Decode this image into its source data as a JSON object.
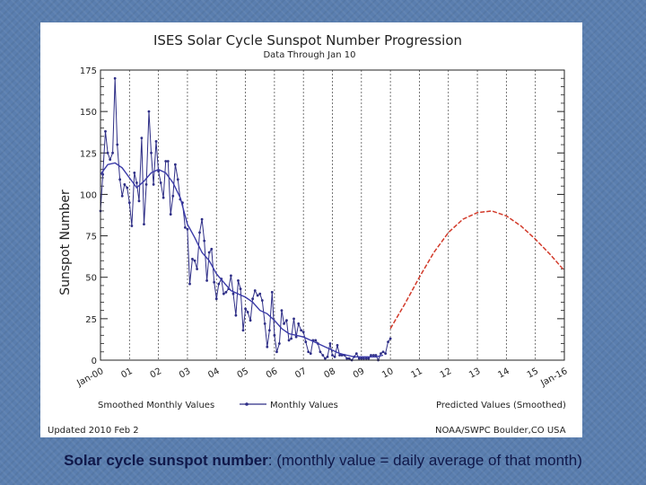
{
  "chart_data": {
    "type": "line",
    "title": "ISES Solar Cycle Sunspot Number Progression",
    "subtitle": "Data Through Jan 10",
    "ylabel": "Sunspot Number",
    "ylim": [
      0,
      175
    ],
    "yticks": [
      0,
      25,
      50,
      75,
      100,
      125,
      150,
      175
    ],
    "xlim": [
      2000.0,
      2016.0
    ],
    "xtick_labels": [
      {
        "x": 2000,
        "label": "Jan-00"
      },
      {
        "x": 2001,
        "label": "01"
      },
      {
        "x": 2002,
        "label": "02"
      },
      {
        "x": 2003,
        "label": "03"
      },
      {
        "x": 2004,
        "label": "04"
      },
      {
        "x": 2005,
        "label": "05"
      },
      {
        "x": 2006,
        "label": "06"
      },
      {
        "x": 2007,
        "label": "07"
      },
      {
        "x": 2008,
        "label": "08"
      },
      {
        "x": 2009,
        "label": "09"
      },
      {
        "x": 2010,
        "label": "10"
      },
      {
        "x": 2011,
        "label": "11"
      },
      {
        "x": 2012,
        "label": "12"
      },
      {
        "x": 2013,
        "label": "13"
      },
      {
        "x": 2014,
        "label": "14"
      },
      {
        "x": 2015,
        "label": "15"
      },
      {
        "x": 2016,
        "label": "Jan-16"
      }
    ],
    "series": [
      {
        "name": "Monthly Values",
        "color": "#2e2e86",
        "x": [
          2000.0,
          2000.08,
          2000.17,
          2000.25,
          2000.33,
          2000.42,
          2000.5,
          2000.58,
          2000.67,
          2000.75,
          2000.83,
          2000.92,
          2001.0,
          2001.08,
          2001.17,
          2001.25,
          2001.33,
          2001.42,
          2001.5,
          2001.58,
          2001.67,
          2001.75,
          2001.83,
          2001.92,
          2002.0,
          2002.08,
          2002.17,
          2002.25,
          2002.33,
          2002.42,
          2002.5,
          2002.58,
          2002.67,
          2002.75,
          2002.83,
          2002.92,
          2003.0,
          2003.08,
          2003.17,
          2003.25,
          2003.33,
          2003.42,
          2003.5,
          2003.58,
          2003.67,
          2003.75,
          2003.83,
          2003.92,
          2004.0,
          2004.08,
          2004.17,
          2004.25,
          2004.33,
          2004.42,
          2004.5,
          2004.58,
          2004.67,
          2004.75,
          2004.83,
          2004.92,
          2005.0,
          2005.08,
          2005.17,
          2005.25,
          2005.33,
          2005.42,
          2005.5,
          2005.58,
          2005.67,
          2005.75,
          2005.83,
          2005.92,
          2006.0,
          2006.08,
          2006.17,
          2006.25,
          2006.33,
          2006.42,
          2006.5,
          2006.58,
          2006.67,
          2006.75,
          2006.83,
          2006.92,
          2007.0,
          2007.08,
          2007.17,
          2007.25,
          2007.33,
          2007.42,
          2007.5,
          2007.58,
          2007.67,
          2007.75,
          2007.83,
          2007.92,
          2008.0,
          2008.08,
          2008.17,
          2008.25,
          2008.33,
          2008.42,
          2008.5,
          2008.58,
          2008.67,
          2008.75,
          2008.83,
          2008.92,
          2009.0,
          2009.08,
          2009.17,
          2009.25,
          2009.33,
          2009.42,
          2009.5,
          2009.58,
          2009.67,
          2009.75,
          2009.83,
          2009.92,
          2010.0
        ],
        "values": [
          90,
          112,
          138,
          125,
          121,
          125,
          170,
          130,
          109,
          99,
          106,
          104,
          95,
          81,
          113,
          107,
          96,
          134,
          82,
          106,
          150,
          125,
          106,
          132,
          114,
          107,
          98,
          120,
          120,
          88,
          99,
          118,
          109,
          97,
          95,
          80,
          79,
          46,
          61,
          60,
          55,
          77,
          85,
          72,
          48,
          65,
          67,
          47,
          37,
          46,
          49,
          40,
          41,
          43,
          51,
          40,
          27,
          48,
          43,
          18,
          31,
          29,
          24,
          37,
          42,
          39,
          40,
          36,
          22,
          8,
          18,
          41,
          15,
          5,
          10,
          30,
          22,
          24,
          12,
          13,
          25,
          14,
          22,
          18,
          17,
          11,
          5,
          4,
          12,
          12,
          10,
          5,
          3,
          1,
          2,
          10,
          3,
          2,
          9,
          3,
          3,
          3,
          1,
          1,
          0,
          2,
          4,
          1,
          1,
          1,
          1,
          1,
          3,
          3,
          3,
          0,
          4,
          5,
          4,
          11,
          13
        ]
      },
      {
        "name": "Smoothed Monthly Values",
        "color": "#3a3aa8",
        "x": [
          2000.0,
          2000.25,
          2000.5,
          2000.75,
          2001.0,
          2001.25,
          2001.5,
          2001.75,
          2002.0,
          2002.25,
          2002.5,
          2002.75,
          2003.0,
          2003.25,
          2003.5,
          2003.75,
          2004.0,
          2004.25,
          2004.5,
          2004.75,
          2005.0,
          2005.25,
          2005.5,
          2005.75,
          2006.0,
          2006.25,
          2006.5,
          2006.75,
          2007.0,
          2007.25,
          2007.5,
          2007.75,
          2008.0,
          2008.25,
          2008.5,
          2008.75,
          2009.0,
          2009.25,
          2009.5,
          2009.75
        ],
        "values": [
          112,
          118,
          119,
          116,
          110,
          104,
          108,
          113,
          115,
          113,
          107,
          98,
          82,
          74,
          65,
          60,
          52,
          47,
          42,
          40,
          38,
          35,
          30,
          28,
          24,
          19,
          16,
          15,
          14,
          12,
          10,
          8,
          6,
          4,
          3,
          2,
          2,
          2,
          2,
          3
        ]
      },
      {
        "name": "Predicted Values (Smoothed)",
        "color": "#d23a2a",
        "x": [
          2010.0,
          2010.5,
          2011.0,
          2011.5,
          2012.0,
          2012.5,
          2013.0,
          2013.5,
          2014.0,
          2014.5,
          2015.0,
          2015.5,
          2016.0
        ],
        "values": [
          19,
          34,
          50,
          65,
          77,
          85,
          89,
          90,
          87,
          81,
          73,
          64,
          54
        ]
      }
    ],
    "legend": {
      "smoothed": "Smoothed Monthly Values",
      "monthly": "Monthly Values",
      "predicted": "Predicted Values (Smoothed)"
    },
    "footer_left": "Updated 2010 Feb 2",
    "footer_right": "NOAA/SWPC Boulder,CO USA"
  },
  "caption": {
    "bold": "Solar cycle sunspot number",
    "rest": ": (monthly value = daily average of that month)"
  },
  "colors": {
    "predicted": "#d23a2a",
    "monthly": "#2e2e86",
    "smoothed": "#3a3aa8",
    "caption": "#10184a"
  }
}
